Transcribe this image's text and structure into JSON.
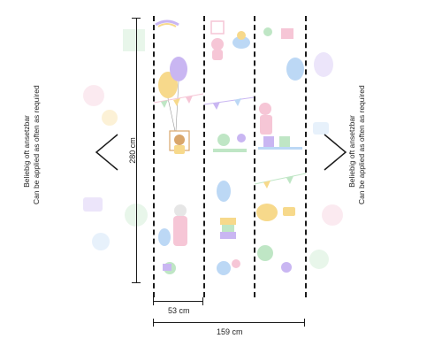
{
  "side_note": {
    "de": "Beliebig oft ansetzbar",
    "en": "Can be applied as often as required"
  },
  "dimensions": {
    "height": "280 cm",
    "panel_width": "53 cm",
    "total_width": "159 cm"
  },
  "icons": {
    "left_arrow": "chevron-left-icon",
    "right_arrow": "chevron-right-icon"
  },
  "colors": {
    "line": "#1a1a1a",
    "balloon_purple": "#c9b6f2",
    "balloon_yellow": "#f7d98b",
    "balloon_blue": "#bcd8f5",
    "pastel_pink": "#f6c6d6",
    "pastel_green": "#bfe6c5"
  }
}
